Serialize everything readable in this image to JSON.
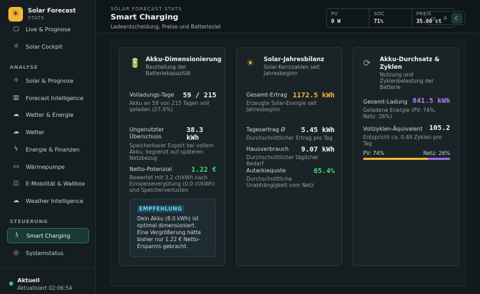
{
  "brand": {
    "title": "Solar Forecast",
    "subtitle": "STATS"
  },
  "nav": {
    "items_top": [
      {
        "label": "Live & Prognose",
        "icon": "live-icon"
      },
      {
        "label": "Solar Cockpit",
        "icon": "sun-icon"
      }
    ],
    "section_analyse": "ANALYSE",
    "items_analyse": [
      {
        "label": "Solar & Prognose",
        "icon": "sun-icon"
      },
      {
        "label": "Forecast Intelligence",
        "icon": "bar-chart-icon"
      },
      {
        "label": "Wetter & Energie",
        "icon": "cloud-icon"
      },
      {
        "label": "Wetter",
        "icon": "cloud-icon"
      },
      {
        "label": "Energie & Finanzen",
        "icon": "bolt-icon"
      },
      {
        "label": "Wärmepumpe",
        "icon": "truck-icon"
      },
      {
        "label": "E-Mobilität & Wallbox",
        "icon": "car-icon"
      },
      {
        "label": "Weather Intelligence",
        "icon": "cloud-icon"
      }
    ],
    "section_steuerung": "STEUERUNG",
    "items_steuerung": [
      {
        "label": "Smart Charging",
        "icon": "plug-icon",
        "active": true
      },
      {
        "label": "Systemstatus",
        "icon": "gauge-icon"
      }
    ]
  },
  "footer": {
    "title": "Aktuell",
    "updated": "Aktualisiert 02:06:54"
  },
  "header": {
    "eyebrow": "SOLAR FORECAST STATS",
    "title": "Smart Charging",
    "subtitle": "Ladeentscheidung, Preise und Batterieziel"
  },
  "stats": [
    {
      "label": "PV",
      "value": "0 W"
    },
    {
      "label": "SOC",
      "value": "71%"
    },
    {
      "label": "PREIS",
      "value": "35.60 ct"
    }
  ],
  "cards": {
    "akku": {
      "title": "Akku-Dimensionierung",
      "subtitle": "Beurteilung der Batteriekapazität",
      "m1": {
        "label": "Volladungs-Tage",
        "value": "59 / 215",
        "desc": "Akku an 59 von 215 Tagen voll geladen (27.4%)"
      },
      "m2": {
        "label": "Ungenutzter Überschuss",
        "value": "38.3 kWh",
        "desc": "Speicherbarer Export bei vollem Akku, begrenzt auf späteren Netzbezug"
      },
      "m3": {
        "label": "Netto-Potenzial",
        "value": "1.22 €",
        "desc": "Bewertet mit 3.2 ct/kWh nach Einspeisevergütung (0.0 ct/kWh) und Speicherverlusten"
      },
      "reco": {
        "tag": "EMPFEHLUNG",
        "text": "Dein Akku (8.0 kWh) ist optimal dimensioniert. Eine Vergrößerung hätte bisher nur 1.22 € Netto-Ersparnis gebracht."
      }
    },
    "solar": {
      "title": "Solar-Jahresbilanz",
      "subtitle": "Solar-Kennzahlen seit Jahresbeginn",
      "m1": {
        "label": "Gesamt-Ertrag",
        "value": "1172.5 kWh",
        "desc": "Erzeugte Solar-Energie seit Jahresbeginn"
      },
      "m2": {
        "label": "Tagesertrag Ø",
        "value": "5.45 kWh",
        "desc": "Durchschnittlicher Ertrag pro Tag"
      },
      "m3": {
        "label": "Hausverbrauch",
        "value": "9.07 kWh",
        "desc": "Durchschnittlicher täglicher Bedarf"
      },
      "m4": {
        "label": "Autarkiequote",
        "value": "65.4%",
        "desc": "Durchschnittliche Unabhängigkeit vom Netz"
      }
    },
    "durchsatz": {
      "title": "Akku-Durchsatz & Zyklen",
      "subtitle": "Nutzung und Zyklenbelastung der Batterie",
      "m1": {
        "label": "Gesamt-Ladung",
        "value": "841.5 kWh",
        "desc": "Geladene Energie (PV: 74%, Netz: 26%)"
      },
      "m2": {
        "label": "Vollzyklen-Äquivalent",
        "value": "105.2",
        "desc": "Entspricht ca. 0.49 Zyklen pro Tag"
      },
      "bar": {
        "pv_label": "PV: 74%",
        "net_label": "Netz: 26%",
        "pv_fraction": 0.74,
        "net_fraction": 0.26,
        "pv_color": "#f3b63a",
        "net_color": "#a66bf0"
      }
    }
  }
}
